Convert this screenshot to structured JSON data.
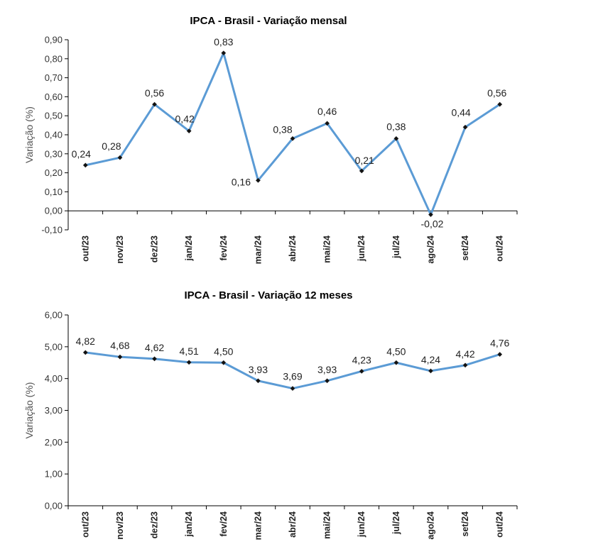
{
  "chart_data": [
    {
      "type": "line",
      "title": "IPCA - Brasil - Variação mensal",
      "xlabel": "",
      "ylabel": "Variação (%)",
      "categories": [
        "out/23",
        "nov/23",
        "dez/23",
        "jan/24",
        "fev/24",
        "mar/24",
        "abr/24",
        "mai/24",
        "jun/24",
        "jul/24",
        "ago/24",
        "set/24",
        "out/24"
      ],
      "values": [
        0.24,
        0.28,
        0.56,
        0.42,
        0.83,
        0.16,
        0.38,
        0.46,
        0.21,
        0.38,
        -0.02,
        0.44,
        0.56
      ],
      "data_labels": [
        "0,24",
        "0,28",
        "0,56",
        "0,42",
        "0,83",
        "0,16",
        "0,38",
        "0,46",
        "0,21",
        "0,38",
        "-0,02",
        "0,44",
        "0,56"
      ],
      "ylim": [
        -0.1,
        0.9
      ],
      "yticks": [
        "-0,10",
        "0,00",
        "0,10",
        "0,20",
        "0,30",
        "0,40",
        "0,50",
        "0,60",
        "0,70",
        "0,80",
        "0,90"
      ],
      "series_color": "#5b9bd5",
      "grid": false
    },
    {
      "type": "line",
      "title": "IPCA - Brasil - Variação 12 meses",
      "xlabel": "",
      "ylabel": "Variação (%)",
      "categories": [
        "out/23",
        "nov/23",
        "dez/23",
        "jan/24",
        "fev/24",
        "mar/24",
        "abr/24",
        "mai/24",
        "jun/24",
        "jul/24",
        "ago/24",
        "set/24",
        "out/24"
      ],
      "values": [
        4.82,
        4.68,
        4.62,
        4.51,
        4.5,
        3.93,
        3.69,
        3.93,
        4.23,
        4.5,
        4.24,
        4.42,
        4.76
      ],
      "data_labels": [
        "4,82",
        "4,68",
        "4,62",
        "4,51",
        "4,50",
        "3,93",
        "3,69",
        "3,93",
        "4,23",
        "4,50",
        "4,24",
        "4,42",
        "4,76"
      ],
      "ylim": [
        0,
        6
      ],
      "yticks": [
        "0,00",
        "1,00",
        "2,00",
        "3,00",
        "4,00",
        "5,00",
        "6,00"
      ],
      "series_color": "#5b9bd5",
      "grid": false
    }
  ]
}
